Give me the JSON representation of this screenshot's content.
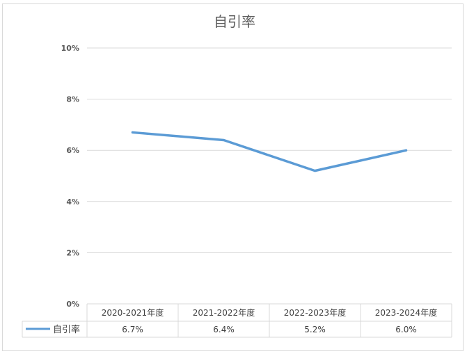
{
  "chart_data": {
    "type": "line",
    "title": "自引率",
    "categories": [
      "2020-2021年度",
      "2021-2022年度",
      "2022-2023年度",
      "2023-2024年度"
    ],
    "series": [
      {
        "name": "自引率",
        "values": [
          6.7,
          6.4,
          5.2,
          6.0
        ],
        "labels": [
          "6.7%",
          "6.4%",
          "5.2%",
          "6.0%"
        ]
      }
    ],
    "yticks": [
      "0%",
      "2%",
      "4%",
      "6%",
      "8%",
      "10%"
    ],
    "ylim": [
      0,
      10
    ],
    "grid": true,
    "legend_placement": "data-table",
    "line_color": "#5b9bd5",
    "grid_color": "#d9d9d9"
  }
}
